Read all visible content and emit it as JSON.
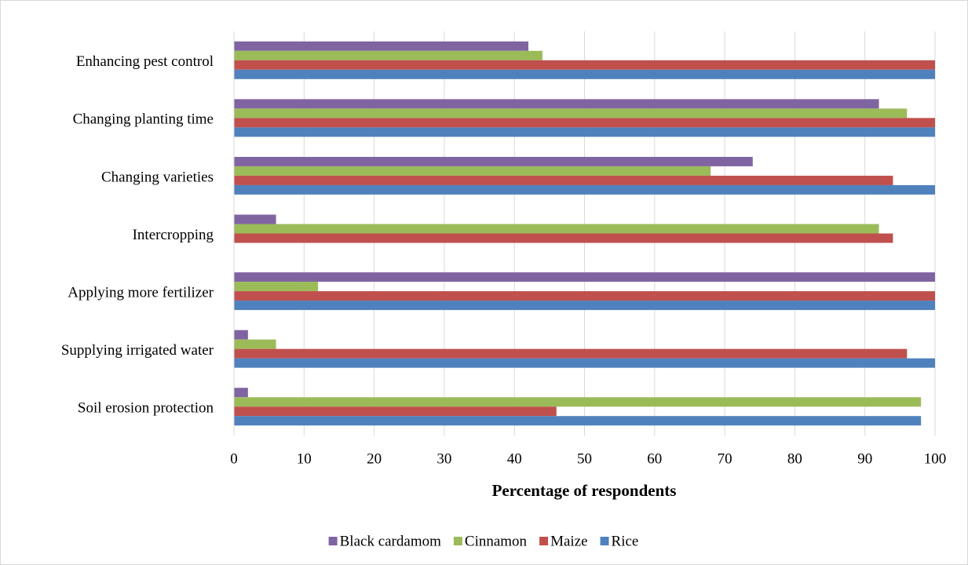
{
  "chart_data": {
    "type": "bar",
    "orientation": "horizontal",
    "x_label": "Percentage of respondents",
    "categories": [
      "Enhancing pest control",
      "Changing planting time",
      "Changing varieties",
      "Intercropping",
      "Applying more fertilizer",
      "Supplying irrigated water",
      "Soil erosion protection"
    ],
    "series": [
      {
        "name": "Black cardamom",
        "color": "#8064a2",
        "values": [
          42,
          92,
          74,
          6,
          100,
          2,
          2
        ]
      },
      {
        "name": "Cinnamon",
        "color": "#9bbb59",
        "values": [
          44,
          96,
          68,
          92,
          12,
          6,
          98
        ]
      },
      {
        "name": "Maize",
        "color": "#c0504d",
        "values": [
          100,
          100,
          94,
          94,
          100,
          96,
          46
        ]
      },
      {
        "name": "Rice",
        "color": "#4f81bd",
        "values": [
          100,
          100,
          100,
          0,
          100,
          100,
          98
        ]
      }
    ],
    "xlim": [
      0,
      100
    ],
    "xticks": [
      0,
      10,
      20,
      30,
      40,
      50,
      60,
      70,
      80,
      90,
      100
    ],
    "grid": true,
    "legend": "bottom"
  }
}
